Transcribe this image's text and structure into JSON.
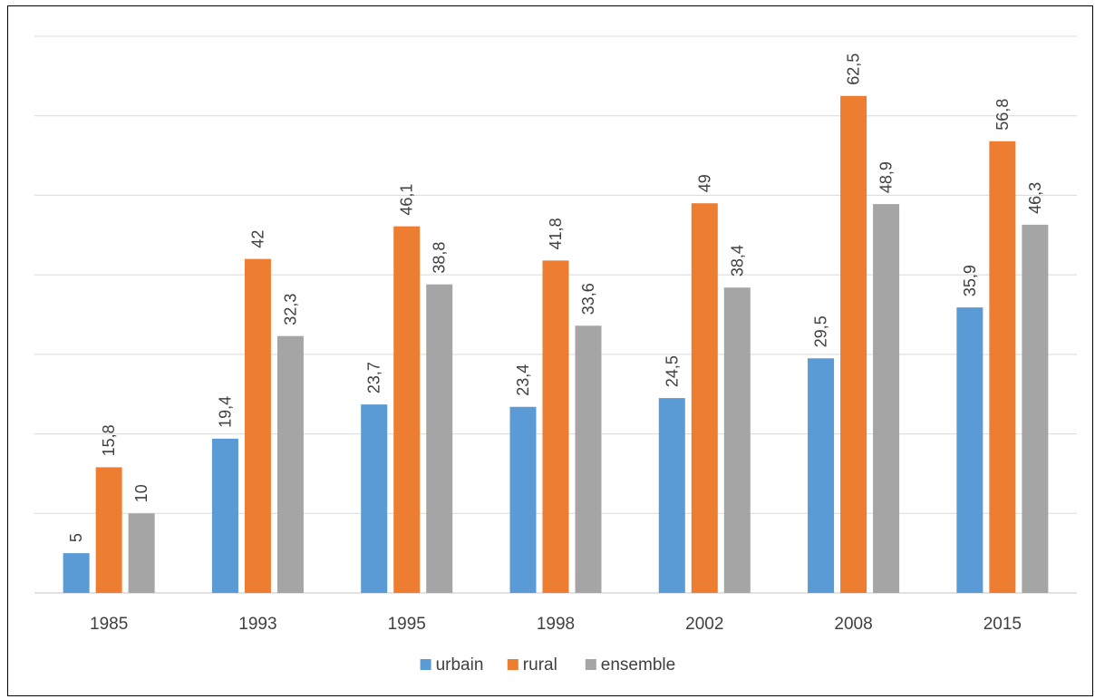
{
  "chart_data": {
    "type": "bar",
    "categories": [
      "1985",
      "1993",
      "1995",
      "1998",
      "2002",
      "2008",
      "2015"
    ],
    "series": [
      {
        "name": "urbain",
        "color": "#5b9bd5",
        "values": [
          5,
          19.4,
          23.7,
          23.4,
          24.5,
          29.5,
          35.9
        ],
        "labels": [
          "5",
          "19,4",
          "23,7",
          "23,4",
          "24,5",
          "29,5",
          "35,9"
        ]
      },
      {
        "name": "rural",
        "color": "#ed7d31",
        "values": [
          15.8,
          42,
          46.1,
          41.8,
          49,
          62.5,
          56.8
        ],
        "labels": [
          "15,8",
          "42",
          "46,1",
          "41,8",
          "49",
          "62,5",
          "56,8"
        ]
      },
      {
        "name": "ensemble",
        "color": "#a5a5a5",
        "values": [
          10,
          32.3,
          38.8,
          33.6,
          38.4,
          48.9,
          46.3
        ],
        "labels": [
          "10",
          "32,3",
          "38,8",
          "33,6",
          "38,4",
          "48,9",
          "46,3"
        ]
      }
    ],
    "ylim": [
      0,
      70
    ],
    "gridlines": true,
    "legend": "bottom",
    "data_labels": "rotated",
    "title": "",
    "xlabel": "",
    "ylabel": ""
  }
}
